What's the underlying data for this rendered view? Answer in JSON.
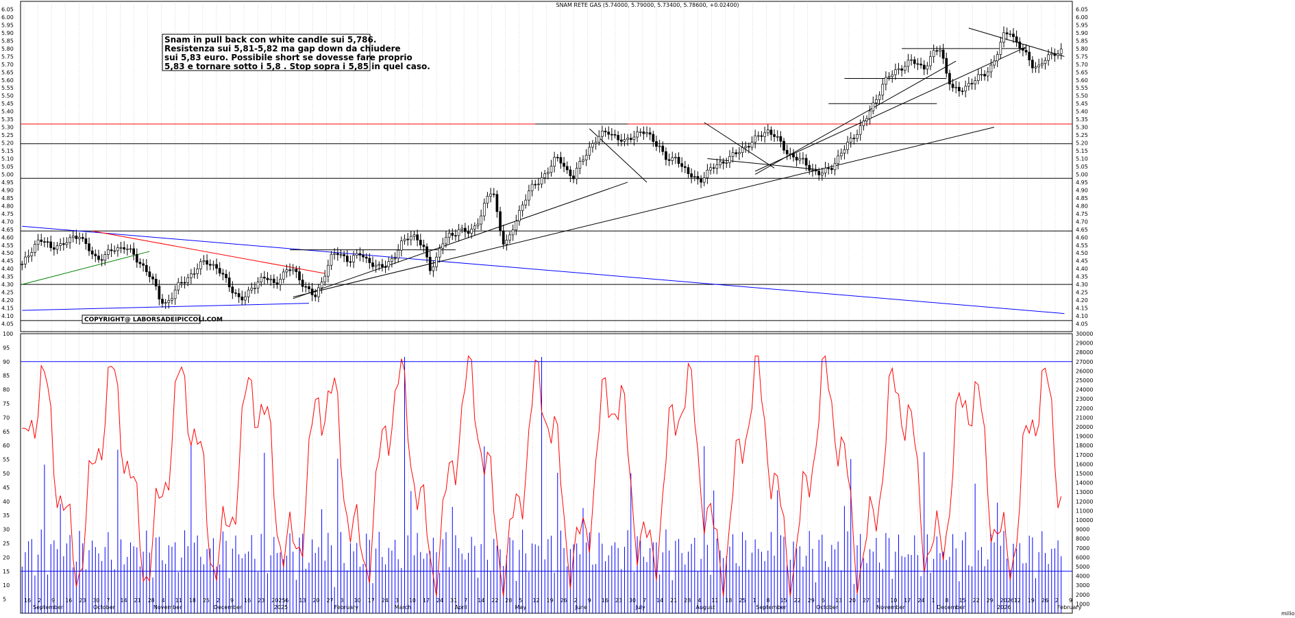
{
  "chart_data": {
    "type": "candlestick",
    "title": "SNAM RETE GAS (5.74000, 5.79000, 5.73400, 5.78600, +0.02400)",
    "price_axis": {
      "range": [
        4.0,
        6.1
      ],
      "ticks": [
        "6.05",
        "6.00",
        "5.95",
        "5.90",
        "5.85",
        "5.80",
        "5.75",
        "5.70",
        "5.65",
        "5.60",
        "5.55",
        "5.50",
        "5.45",
        "5.40",
        "5.35",
        "5.30",
        "5.25",
        "5.20",
        "5.15",
        "5.10",
        "5.05",
        "5.00",
        "4.95",
        "4.90",
        "4.85",
        "4.80",
        "4.75",
        "4.70",
        "4.65",
        "4.60",
        "4.55",
        "4.50",
        "4.45",
        "4.40",
        "4.35",
        "4.30",
        "4.25",
        "4.20",
        "4.15",
        "4.10",
        "4.05"
      ]
    },
    "oscillator_axis": {
      "range": [
        0,
        100
      ],
      "ticks": [
        "100",
        "95",
        "90",
        "85",
        "80",
        "75",
        "70",
        "65",
        "60",
        "55",
        "50",
        "45",
        "40",
        "35",
        "30",
        "25",
        "20",
        "15",
        "10",
        "5"
      ]
    },
    "volume_axis": {
      "range": [
        0,
        30000
      ],
      "ticks": [
        "30000",
        "29000",
        "28000",
        "27000",
        "26000",
        "25000",
        "24000",
        "23000",
        "22000",
        "21000",
        "20000",
        "19000",
        "18000",
        "17000",
        "16000",
        "15000",
        "14000",
        "13000",
        "12000",
        "11000",
        "10000",
        "9000",
        "8000",
        "7000",
        "6000",
        "5000",
        "4000",
        "3000",
        "2000",
        "1000"
      ],
      "unit_label": "milioni"
    },
    "x_axis": {
      "day_labels": [
        "16",
        "2",
        "9",
        "16",
        "23",
        "30",
        "7",
        "14",
        "21",
        "28",
        "4",
        "11",
        "18",
        "25",
        "2",
        "9",
        "16",
        "23",
        "2025",
        "6",
        "13",
        "20",
        "27",
        "3",
        "10",
        "17",
        "24",
        "3",
        "10",
        "17",
        "24",
        "31",
        "7",
        "14",
        "22",
        "28",
        "5",
        "12",
        "19",
        "26",
        "2",
        "9",
        "16",
        "23",
        "30",
        "7",
        "14",
        "21",
        "28",
        "4",
        "11",
        "18",
        "25",
        "1",
        "8",
        "15",
        "22",
        "29",
        "6",
        "13",
        "20",
        "27",
        "3",
        "10",
        "17",
        "24",
        "1",
        "8",
        "15",
        "22",
        "29",
        "2026",
        "12",
        "19",
        "26",
        "2",
        "9"
      ],
      "month_labels": [
        "September",
        "October",
        "November",
        "December",
        "2025",
        "February",
        "March",
        "April",
        "May",
        "June",
        "July",
        "August",
        "September",
        "October",
        "November",
        "December",
        "2026",
        "February"
      ]
    },
    "horizontal_levels": [
      {
        "value": 5.32,
        "color": "#ff0000"
      },
      {
        "value": 5.195,
        "color": "#000000"
      },
      {
        "value": 4.975,
        "color": "#000000"
      },
      {
        "value": 4.64,
        "color": "#000000"
      },
      {
        "value": 4.3,
        "color": "#000000"
      },
      {
        "value": 4.07,
        "color": "#000000"
      }
    ],
    "oscillator_levels": [
      {
        "value": 90,
        "color": "#0000ff"
      },
      {
        "value": 15,
        "color": "#0000ff"
      }
    ],
    "trendlines": [
      {
        "color": "#0000ff",
        "from": [
          0,
          4.67
        ],
        "to": [
          327,
          4.115
        ]
      },
      {
        "color": "#0000ff",
        "from": [
          0,
          4.135
        ],
        "to": [
          90,
          4.18
        ]
      },
      {
        "color": "#ff0000",
        "from": [
          22,
          4.64
        ],
        "to": [
          95,
          4.37
        ]
      },
      {
        "color": "#008000",
        "from": [
          0,
          4.3
        ],
        "to": [
          40,
          4.51
        ]
      },
      {
        "color": "#000000",
        "from": [
          85,
          4.21
        ],
        "to": [
          190,
          4.95
        ]
      },
      {
        "color": "#000000",
        "from": [
          85,
          4.22
        ],
        "to": [
          305,
          5.3
        ]
      },
      {
        "color": "#000000",
        "from": [
          161,
          5.32
        ],
        "to": [
          190,
          5.32
        ]
      },
      {
        "color": "#000000",
        "from": [
          84,
          4.52
        ],
        "to": [
          136,
          4.52
        ]
      },
      {
        "color": "#000000",
        "from": [
          178,
          5.29
        ],
        "to": [
          196,
          4.95
        ]
      },
      {
        "color": "#000000",
        "from": [
          214,
          5.33
        ],
        "to": [
          236,
          5.04
        ]
      },
      {
        "color": "#000000",
        "from": [
          215,
          5.1
        ],
        "to": [
          250,
          5.03
        ]
      },
      {
        "color": "#000000",
        "from": [
          230,
          5.0
        ],
        "to": [
          293,
          5.72
        ]
      },
      {
        "color": "#000000",
        "from": [
          230,
          5.02
        ],
        "to": [
          315,
          5.81
        ]
      },
      {
        "color": "#000000",
        "from": [
          253,
          5.45
        ],
        "to": [
          287,
          5.45
        ]
      },
      {
        "color": "#000000",
        "from": [
          258,
          5.61
        ],
        "to": [
          290,
          5.61
        ]
      },
      {
        "color": "#000000",
        "from": [
          276,
          5.8
        ],
        "to": [
          315,
          5.8
        ]
      },
      {
        "color": "#000000",
        "from": [
          297,
          5.93
        ],
        "to": [
          327,
          5.75
        ]
      }
    ],
    "close_series_estimate": [
      4.42,
      4.48,
      4.55,
      4.58,
      4.57,
      4.53,
      4.56,
      4.54,
      4.58,
      4.6,
      4.62,
      4.55,
      4.5,
      4.46,
      4.48,
      4.5,
      4.52,
      4.53,
      4.55,
      4.5,
      4.45,
      4.42,
      4.38,
      4.3,
      4.2,
      4.18,
      4.22,
      4.28,
      4.32,
      4.35,
      4.38,
      4.42,
      4.45,
      4.43,
      4.4,
      4.35,
      4.3,
      4.25,
      4.2,
      4.22,
      4.28,
      4.32,
      4.34,
      4.33,
      4.3,
      4.35,
      4.38,
      4.4,
      4.36,
      4.3,
      4.25,
      4.22,
      4.3,
      4.4,
      4.48,
      4.5,
      4.48,
      4.45,
      4.47,
      4.5,
      4.46,
      4.43,
      4.4,
      4.42,
      4.45,
      4.48,
      4.55,
      4.6,
      4.62,
      4.58,
      4.52,
      4.4,
      4.45,
      4.55,
      4.6,
      4.62,
      4.65,
      4.64,
      4.62,
      4.68,
      4.75,
      4.85,
      4.9,
      4.7,
      4.55,
      4.6,
      4.7,
      4.8,
      4.88,
      4.92,
      4.95,
      5.0,
      5.05,
      5.1,
      5.08,
      5.02,
      4.98,
      5.05,
      5.12,
      5.18,
      5.22,
      5.25,
      5.28,
      5.25,
      5.22,
      5.2,
      5.24,
      5.26,
      5.27,
      5.25,
      5.22,
      5.18,
      5.1,
      5.08,
      5.12,
      5.05,
      5.0,
      4.98,
      4.96,
      5.0,
      5.03,
      5.06,
      5.08,
      5.1,
      5.12,
      5.15,
      5.18,
      5.2,
      5.23,
      5.26,
      5.28,
      5.25,
      5.2,
      5.15,
      5.12,
      5.1,
      5.08,
      5.05,
      5.02,
      5.0,
      5.02,
      5.05,
      5.1,
      5.15,
      5.2,
      5.25,
      5.3,
      5.35,
      5.42,
      5.5,
      5.58,
      5.62,
      5.65,
      5.68,
      5.7,
      5.72,
      5.7,
      5.68,
      5.72,
      5.78,
      5.8,
      5.65,
      5.55,
      5.52,
      5.55,
      5.58,
      5.6,
      5.62,
      5.65,
      5.7,
      5.78,
      5.88,
      5.92,
      5.85,
      5.8,
      5.75,
      5.7,
      5.68,
      5.72,
      5.75,
      5.78,
      5.786
    ]
  },
  "annotations": {
    "note_lines": [
      "Snam in pull back con white candle sui 5,786.",
      "Resistenza sui 5,81-5,82 ma gap down da chiudere",
      "sui 5,83 euro. Possibile short se dovesse fare proprio",
      "5,83 e tornare sotto i 5,8 . Stop sopra i 5,85 in quel caso."
    ],
    "copyright": "COPYRIGHT@ LABORSADEIPICCOLI.COM"
  },
  "colors": {
    "candle": "#000000",
    "oscillator": "#ff0000",
    "volume": "#0000ff",
    "grid": "#aaaaaa"
  }
}
